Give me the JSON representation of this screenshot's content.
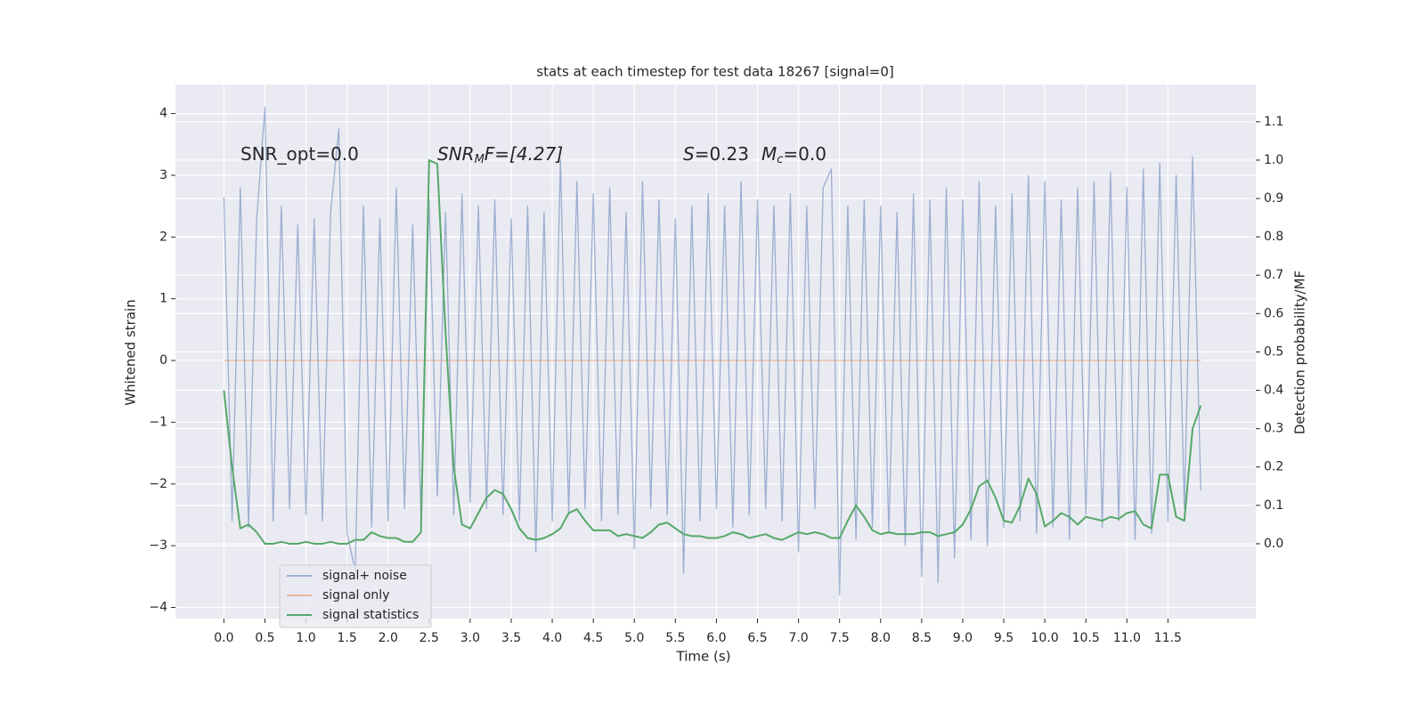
{
  "chart_data": {
    "type": "line",
    "title": "stats at each timestep for test data 18267 [signal=0]",
    "xlabel": "Time (s)",
    "ylabel": "Whitened strain",
    "y2label": "Detection probability/MF",
    "annotations": [
      [
        "SNR_opt=0.0"
      ],
      [
        "SNR",
        "M",
        "F=[4.27]"
      ],
      [
        "S",
        "=0.23",
        "M",
        "c",
        "=0.0"
      ]
    ],
    "x": [
      0,
      0.1,
      0.2,
      0.3,
      0.4,
      0.5,
      0.6,
      0.7,
      0.8,
      0.9,
      1,
      1.1,
      1.2,
      1.3,
      1.4,
      1.5,
      1.6,
      1.7,
      1.8,
      1.9,
      2,
      2.1,
      2.2,
      2.3,
      2.4,
      2.5,
      2.6,
      2.7,
      2.8,
      2.9,
      3,
      3.1,
      3.2,
      3.3,
      3.4,
      3.5,
      3.6,
      3.7,
      3.8,
      3.9,
      4,
      4.1,
      4.2,
      4.3,
      4.4,
      4.5,
      4.6,
      4.7,
      4.8,
      4.9,
      5,
      5.1,
      5.2,
      5.3,
      5.4,
      5.5,
      5.6,
      5.7,
      5.8,
      5.9,
      6,
      6.1,
      6.2,
      6.3,
      6.4,
      6.5,
      6.6,
      6.7,
      6.8,
      6.9,
      7,
      7.1,
      7.2,
      7.3,
      7.4,
      7.5,
      7.6,
      7.7,
      7.8,
      7.9,
      8,
      8.1,
      8.2,
      8.3,
      8.4,
      8.5,
      8.6,
      8.7,
      8.8,
      8.9,
      9,
      9.1,
      9.2,
      9.3,
      9.4,
      9.5,
      9.6,
      9.7,
      9.8,
      9.9,
      10,
      10.1,
      10.2,
      10.3,
      10.4,
      10.5,
      10.6,
      10.7,
      10.8,
      10.9,
      11,
      11.1,
      11.2,
      11.3,
      11.4,
      11.5,
      11.6,
      11.7,
      11.8,
      11.9
    ],
    "series": [
      {
        "name": "signal+ noise",
        "color": "#4c72b0",
        "opacity": 0.5,
        "values": [
          2.65,
          -2.6,
          2.8,
          -2.7,
          2.3,
          4.1,
          -2.6,
          2.5,
          -2.4,
          2.2,
          -2.5,
          2.3,
          -2.6,
          2.4,
          3.75,
          -2.8,
          -3.4,
          2.5,
          -2.7,
          2.3,
          -2.6,
          2.8,
          -2.4,
          2.2,
          -2.5,
          2.6,
          -2.2,
          2.4,
          -2.5,
          2.7,
          -2.3,
          2.5,
          -2.4,
          2.6,
          -2.5,
          2.3,
          -2.6,
          2.5,
          -3.1,
          2.4,
          -2.6,
          3.25,
          -2.5,
          2.9,
          -2.4,
          2.7,
          -2.6,
          2.8,
          -2.5,
          2.4,
          -3.05,
          2.9,
          -2.4,
          2.6,
          -2.5,
          2.3,
          -3.45,
          2.5,
          -2.6,
          2.7,
          -2.4,
          2.5,
          -2.7,
          2.9,
          -2.5,
          2.6,
          -2.4,
          2.5,
          -2.6,
          2.7,
          -3.1,
          2.5,
          -2.4,
          2.8,
          3.1,
          -3.8,
          2.5,
          -2.9,
          2.6,
          -2.7,
          2.5,
          -2.8,
          2.4,
          -3.0,
          2.7,
          -3.5,
          2.6,
          -3.6,
          2.8,
          -3.2,
          2.6,
          -2.9,
          2.9,
          -3.0,
          2.5,
          -2.7,
          2.7,
          -2.6,
          3.0,
          -2.8,
          2.9,
          -2.7,
          2.6,
          -2.9,
          2.8,
          -2.5,
          2.9,
          -2.7,
          3.05,
          -2.6,
          2.8,
          -2.9,
          3.1,
          -2.8,
          3.2,
          -2.6,
          3.0,
          -2.4,
          3.3,
          -2.1
        ]
      },
      {
        "name": "signal only",
        "color": "#dd8452",
        "opacity": 0.5,
        "values": [
          0,
          0,
          0,
          0,
          0,
          0,
          0,
          0,
          0,
          0,
          0,
          0,
          0,
          0,
          0,
          0,
          0,
          0,
          0,
          0,
          0,
          0,
          0,
          0,
          0,
          0,
          0,
          0,
          0,
          0,
          0,
          0,
          0,
          0,
          0,
          0,
          0,
          0,
          0,
          0,
          0,
          0,
          0,
          0,
          0,
          0,
          0,
          0,
          0,
          0,
          0,
          0,
          0,
          0,
          0,
          0,
          0,
          0,
          0,
          0,
          0,
          0,
          0,
          0,
          0,
          0,
          0,
          0,
          0,
          0,
          0,
          0,
          0,
          0,
          0,
          0,
          0,
          0,
          0,
          0,
          0,
          0,
          0,
          0,
          0,
          0,
          0,
          0,
          0,
          0,
          0,
          0,
          0,
          0,
          0,
          0,
          0,
          0,
          0,
          0,
          0,
          0,
          0,
          0,
          0,
          0,
          0,
          0,
          0,
          0,
          0,
          0,
          0,
          0,
          0,
          0,
          0,
          0,
          0,
          0
        ]
      },
      {
        "name": "signal statistics",
        "color": "#55a868",
        "opacity": 1,
        "axis": "y2",
        "values": [
          0.4,
          0.2,
          0.04,
          0.05,
          0.03,
          0.0,
          0.0,
          0.005,
          0.0,
          0.0,
          0.005,
          0.0,
          0.0,
          0.005,
          0.0,
          0.0,
          0.01,
          0.01,
          0.03,
          0.02,
          0.015,
          0.015,
          0.005,
          0.005,
          0.03,
          1.0,
          0.99,
          0.55,
          0.2,
          0.05,
          0.04,
          0.08,
          0.12,
          0.14,
          0.13,
          0.09,
          0.04,
          0.015,
          0.01,
          0.015,
          0.025,
          0.04,
          0.08,
          0.09,
          0.06,
          0.035,
          0.035,
          0.035,
          0.02,
          0.025,
          0.02,
          0.015,
          0.03,
          0.05,
          0.055,
          0.04,
          0.025,
          0.02,
          0.02,
          0.015,
          0.015,
          0.02,
          0.03,
          0.025,
          0.015,
          0.02,
          0.025,
          0.015,
          0.01,
          0.02,
          0.03,
          0.025,
          0.03,
          0.025,
          0.015,
          0.015,
          0.06,
          0.1,
          0.07,
          0.035,
          0.025,
          0.03,
          0.025,
          0.025,
          0.025,
          0.03,
          0.03,
          0.02,
          0.025,
          0.03,
          0.05,
          0.09,
          0.15,
          0.165,
          0.12,
          0.06,
          0.055,
          0.1,
          0.17,
          0.13,
          0.045,
          0.06,
          0.08,
          0.07,
          0.05,
          0.07,
          0.065,
          0.06,
          0.07,
          0.065,
          0.08,
          0.085,
          0.05,
          0.04,
          0.18,
          0.18,
          0.07,
          0.06,
          0.3,
          0.36
        ]
      }
    ],
    "xlim": [
      -0.59,
      12.57
    ],
    "ylim": [
      -4.18,
      4.47
    ],
    "y2lim": [
      -0.195,
      1.197
    ],
    "xticks": [
      {
        "value": 0,
        "label": "0.0"
      },
      0.5,
      {
        "value": 1,
        "label": "1.0"
      },
      1.5,
      {
        "value": 2,
        "label": "2.0"
      },
      2.5,
      {
        "value": 3,
        "label": "3.0"
      },
      3.5,
      {
        "value": 4,
        "label": "4.0"
      },
      4.5,
      {
        "value": 5,
        "label": "5.0"
      },
      5.5,
      {
        "value": 6,
        "label": "6.0"
      },
      6.5,
      {
        "value": 7,
        "label": "7.0"
      },
      7.5,
      {
        "value": 8,
        "label": "8.0"
      },
      8.5,
      {
        "value": 9,
        "label": "9.0"
      },
      9.5,
      {
        "value": 10,
        "label": "10.0"
      },
      10.5,
      {
        "value": 11,
        "label": "11.0"
      },
      11.5
    ],
    "yticks": [
      {
        "value": -4,
        "label": "−4"
      },
      {
        "value": -3,
        "label": "−3"
      },
      {
        "value": -2,
        "label": "−2"
      },
      {
        "value": -1,
        "label": "−1"
      },
      0,
      1,
      2,
      3,
      4
    ],
    "y2ticks": [
      {
        "value": 0,
        "label": "0.0"
      },
      0.1,
      0.2,
      0.3,
      0.4,
      0.5,
      0.6,
      0.7,
      0.8,
      0.9,
      {
        "value": 1,
        "label": "1.0"
      },
      1.1
    ],
    "grid": true,
    "legend": "lower left"
  }
}
